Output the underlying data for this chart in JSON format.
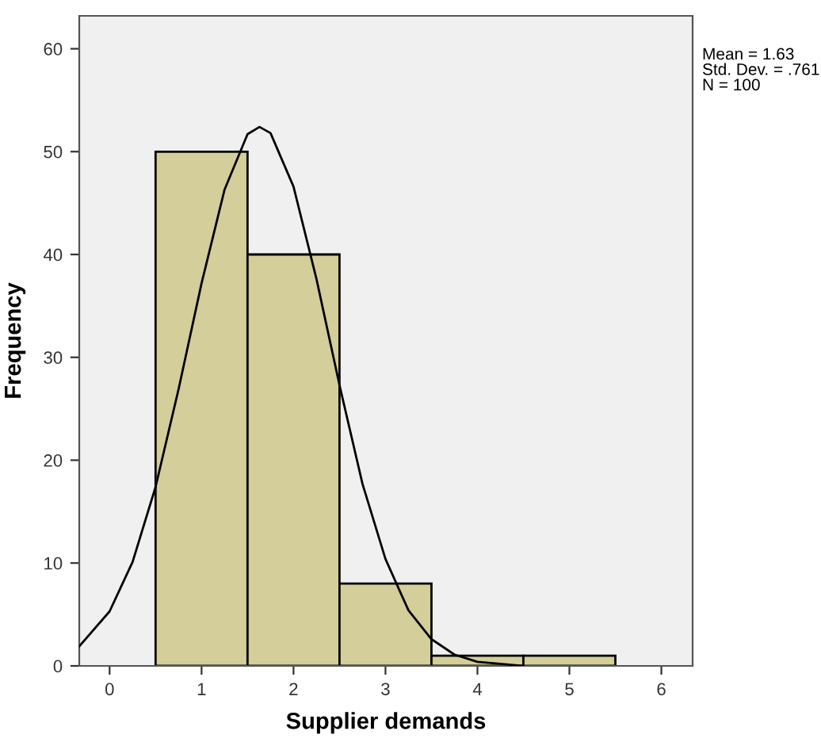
{
  "chart_data": {
    "type": "histogram",
    "xlabel": "Supplier demands",
    "ylabel": "Frequency",
    "bins": [
      0.5,
      1.5,
      2.5,
      3.5,
      4.5,
      5.5
    ],
    "values": [
      50,
      40,
      8,
      1,
      1
    ],
    "color": "#d3ce9a",
    "series": [
      {
        "type": "line",
        "color": "#000000",
        "x": [
          -0.33,
          0,
          0.25,
          0.5,
          0.75,
          1.0,
          1.25,
          1.5,
          1.63,
          1.75,
          2.0,
          2.25,
          2.5,
          2.75,
          3.0,
          3.25,
          3.5,
          3.75,
          4.0,
          4.5
        ],
        "values": [
          1.9,
          5.3,
          10.1,
          17.4,
          26.9,
          37.2,
          46.3,
          51.7,
          52.4,
          51.8,
          46.6,
          37.6,
          27.3,
          17.7,
          10.4,
          5.4,
          2.6,
          1.1,
          0.4,
          0.0
        ]
      }
    ],
    "xlim": [
      -0.33,
      6.34
    ],
    "xticks": [
      0,
      1,
      2,
      3,
      4,
      5,
      6
    ],
    "ylim": [
      0,
      63.2
    ],
    "yticks": [
      0,
      10,
      20,
      30,
      40,
      50,
      60
    ],
    "annotations": [
      "Mean = 1.63\nStd. Dev. = .761\nN = 100"
    ]
  }
}
